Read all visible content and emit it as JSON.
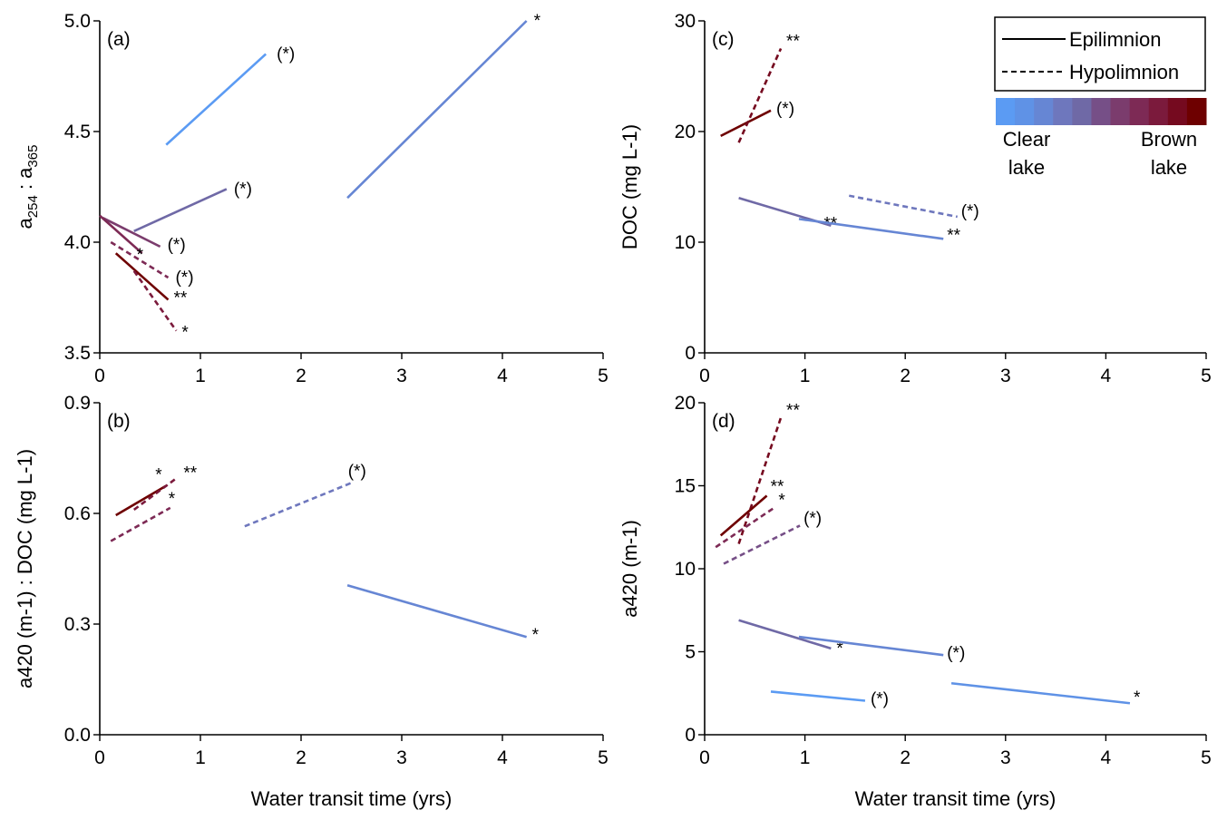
{
  "colors": {
    "scale": [
      "#5b9bf3",
      "#5f92e6",
      "#6686d4",
      "#6e77bd",
      "#6f69a6",
      "#764f87",
      "#7b3c6d",
      "#7d2a55",
      "#7b1a3c",
      "#750a1f",
      "#6e0000"
    ]
  },
  "chart_data": [
    {
      "type": "line",
      "panel_label": "(a)",
      "ylabel": "a254 : a365",
      "ylabel_main": "a",
      "ylabel_sub1": "254",
      "ylabel_mid": " : a",
      "ylabel_sub2": "365",
      "xlabel": "",
      "xlim": [
        0,
        5
      ],
      "ylim": [
        3.5,
        5.0
      ],
      "xticks": [
        "0",
        "1",
        "2",
        "3",
        "4",
        "5"
      ],
      "yticks": [
        "3.5",
        "4.0",
        "4.5",
        "5.0"
      ],
      "series": [
        {
          "color": "#5b9bf3",
          "dash": false,
          "x": [
            0.66,
            1.65
          ],
          "y": [
            4.44,
            4.85
          ],
          "sig": "(*)"
        },
        {
          "color": "#6686d4",
          "dash": false,
          "x": [
            2.46,
            4.24
          ],
          "y": [
            4.2,
            5.0
          ],
          "sig": "*"
        },
        {
          "color": "#6f69a6",
          "dash": false,
          "x": [
            0.34,
            1.26
          ],
          "y": [
            4.05,
            4.24
          ],
          "sig": "(*)"
        },
        {
          "color": "#7b3c6d",
          "dash": false,
          "x": [
            0.03,
            0.6
          ],
          "y": [
            4.11,
            3.98
          ],
          "sig": "(*)"
        },
        {
          "color": "#7d2a55",
          "dash": false,
          "x": [
            0.0,
            0.42
          ],
          "y": [
            4.12,
            3.95
          ],
          "sig": "*"
        },
        {
          "color": "#7d2a55",
          "dash": true,
          "x": [
            0.11,
            0.68
          ],
          "y": [
            4.0,
            3.84
          ],
          "sig": "(*)"
        },
        {
          "color": "#6e0000",
          "dash": false,
          "x": [
            0.16,
            0.68
          ],
          "y": [
            3.95,
            3.74
          ],
          "sig": "**"
        },
        {
          "color": "#7b1a3c",
          "dash": true,
          "x": [
            0.34,
            0.76
          ],
          "y": [
            3.87,
            3.6
          ],
          "sig": "*"
        }
      ]
    },
    {
      "type": "line",
      "panel_label": "(b)",
      "ylabel": "a420 (m-1) : DOC (mg L-1)",
      "xlabel": "Water transit time (yrs)",
      "xlim": [
        0,
        5
      ],
      "ylim": [
        0.0,
        0.9
      ],
      "xticks": [
        "0",
        "1",
        "2",
        "3",
        "4",
        "5"
      ],
      "yticks": [
        "0.0",
        "0.3",
        "0.6",
        "0.9"
      ],
      "series": [
        {
          "color": "#6e0000",
          "dash": false,
          "x": [
            0.16,
            0.66
          ],
          "y": [
            0.595,
            0.675
          ],
          "sig": "*"
        },
        {
          "color": "#7b1a3c",
          "dash": true,
          "x": [
            0.34,
            0.76
          ],
          "y": [
            0.61,
            0.695
          ],
          "sig": "**"
        },
        {
          "color": "#7d2a55",
          "dash": true,
          "x": [
            0.11,
            0.7
          ],
          "y": [
            0.525,
            0.615
          ],
          "sig": "*"
        },
        {
          "color": "#6e77bd",
          "dash": true,
          "x": [
            1.44,
            2.52
          ],
          "y": [
            0.565,
            0.685
          ],
          "sig": "(*)"
        },
        {
          "color": "#6686d4",
          "dash": false,
          "x": [
            2.46,
            4.24
          ],
          "y": [
            0.405,
            0.265
          ],
          "sig": "*"
        }
      ]
    },
    {
      "type": "line",
      "panel_label": "(c)",
      "ylabel": "DOC (mg L-1)",
      "xlabel": "",
      "xlim": [
        0,
        5
      ],
      "ylim": [
        0,
        30
      ],
      "xticks": [
        "0",
        "1",
        "2",
        "3",
        "4",
        "5"
      ],
      "yticks": [
        "0",
        "10",
        "20",
        "30"
      ],
      "series": [
        {
          "color": "#6e0000",
          "dash": false,
          "x": [
            0.16,
            0.66
          ],
          "y": [
            19.6,
            21.9
          ],
          "sig": "(*)"
        },
        {
          "color": "#750a1f",
          "dash": true,
          "x": [
            0.34,
            0.76
          ],
          "y": [
            19.0,
            27.5
          ],
          "sig": "**"
        },
        {
          "color": "#6f69a6",
          "dash": false,
          "x": [
            0.34,
            1.26
          ],
          "y": [
            14.0,
            11.5
          ],
          "sig": "**"
        },
        {
          "color": "#6686d4",
          "dash": false,
          "x": [
            0.94,
            2.38
          ],
          "y": [
            12.1,
            10.3
          ],
          "sig": "**"
        },
        {
          "color": "#6e77bd",
          "dash": true,
          "x": [
            1.44,
            2.52
          ],
          "y": [
            14.2,
            12.3
          ],
          "sig": "(*)"
        }
      ],
      "legend": {
        "epilimnion": "Epilimnion",
        "hypolimnion": "Hypolimnion",
        "clear1": "Clear",
        "clear2": "lake",
        "brown1": "Brown",
        "brown2": "lake"
      }
    },
    {
      "type": "line",
      "panel_label": "(d)",
      "ylabel": "a420 (m-1)",
      "xlabel": "Water transit time (yrs)",
      "xlim": [
        0,
        5
      ],
      "ylim": [
        0,
        20
      ],
      "xticks": [
        "0",
        "1",
        "2",
        "3",
        "4",
        "5"
      ],
      "yticks": [
        "0",
        "5",
        "10",
        "15",
        "20"
      ],
      "series": [
        {
          "color": "#750a1f",
          "dash": true,
          "x": [
            0.34,
            0.76
          ],
          "y": [
            11.5,
            19.1
          ],
          "sig": "**"
        },
        {
          "color": "#6e0000",
          "dash": false,
          "x": [
            0.16,
            0.62
          ],
          "y": [
            12.0,
            14.4
          ],
          "sig": "**"
        },
        {
          "color": "#7d2a55",
          "dash": true,
          "x": [
            0.11,
            0.7
          ],
          "y": [
            11.3,
            13.7
          ],
          "sig": "*"
        },
        {
          "color": "#764f87",
          "dash": true,
          "x": [
            0.19,
            0.95
          ],
          "y": [
            10.3,
            12.6
          ],
          "sig": "(*)"
        },
        {
          "color": "#6f69a6",
          "dash": false,
          "x": [
            0.34,
            1.26
          ],
          "y": [
            6.9,
            5.2
          ],
          "sig": "*"
        },
        {
          "color": "#6686d4",
          "dash": false,
          "x": [
            0.94,
            2.38
          ],
          "y": [
            5.9,
            4.8
          ],
          "sig": "(*)"
        },
        {
          "color": "#5b9bf3",
          "dash": false,
          "x": [
            0.66,
            1.6
          ],
          "y": [
            2.6,
            2.05
          ],
          "sig": "(*)"
        },
        {
          "color": "#5f92e6",
          "dash": false,
          "x": [
            2.46,
            4.24
          ],
          "y": [
            3.1,
            1.9
          ],
          "sig": "*"
        }
      ]
    }
  ]
}
